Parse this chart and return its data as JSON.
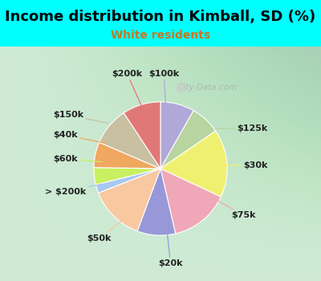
{
  "title": "Income distribution in Kimball, SD (%)",
  "subtitle": "White residents",
  "title_color": "#000000",
  "subtitle_color": "#c87820",
  "bg_cyan": "#00ffff",
  "bg_chart_top_left": "#d0ede0",
  "bg_chart_bottom_right": "#e8f8f0",
  "labels": [
    "$100k",
    "$125k",
    "$30k",
    "$75k",
    "$20k",
    "$50k",
    "> $200k",
    "$60k",
    "$40k",
    "$150k",
    "$200k"
  ],
  "values": [
    8,
    7,
    16,
    14,
    9,
    13,
    2,
    4,
    6,
    9,
    9
  ],
  "colors": [
    "#b0a8d8",
    "#b8d4a0",
    "#f0f070",
    "#f0a8b8",
    "#9898d8",
    "#f8c8a0",
    "#a8c8f0",
    "#c8f060",
    "#f0a860",
    "#c8c0a0",
    "#e07878"
  ],
  "watermark": "City-Data.com",
  "figsize": [
    4.0,
    3.5
  ],
  "dpi": 100,
  "title_fontsize": 13,
  "subtitle_fontsize": 10,
  "label_fontsize": 8
}
